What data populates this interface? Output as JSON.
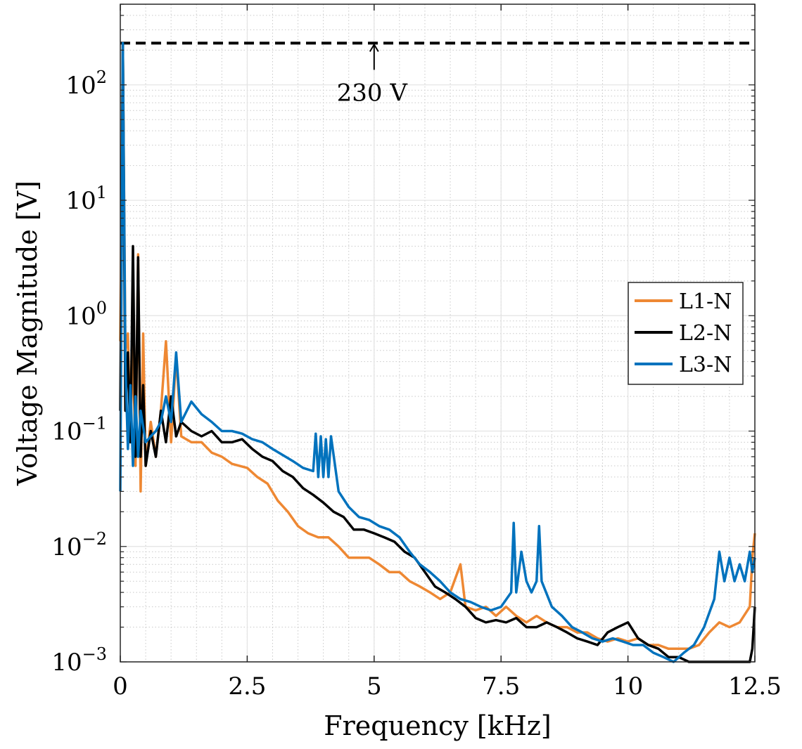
{
  "chart_data": {
    "type": "line",
    "title": "",
    "xlabel": "Frequency [kHz]",
    "ylabel": "Voltage Magnitude [V]",
    "xlim": [
      0,
      12.5
    ],
    "ylim": [
      0.001,
      500
    ],
    "yscale": "log",
    "grid": true,
    "minor_grid": true,
    "legend_position": "right",
    "x_ticks": [
      {
        "value": 0,
        "label": "0"
      },
      {
        "value": 2.5,
        "label": "2.5"
      },
      {
        "value": 5,
        "label": "5"
      },
      {
        "value": 7.5,
        "label": "7.5"
      },
      {
        "value": 10,
        "label": "10"
      },
      {
        "value": 12.5,
        "label": "12.5"
      }
    ],
    "y_ticks": [
      {
        "value": 0.001,
        "base": "10",
        "exp": "−3"
      },
      {
        "value": 0.01,
        "base": "10",
        "exp": "−2"
      },
      {
        "value": 0.1,
        "base": "10",
        "exp": "−1"
      },
      {
        "value": 1,
        "base": "10",
        "exp": "0"
      },
      {
        "value": 10,
        "base": "10",
        "exp": "1"
      },
      {
        "value": 100,
        "base": "10",
        "exp": "2"
      }
    ],
    "reference_line": {
      "value": 230,
      "style": "dashed",
      "color": "#000000"
    },
    "annotation": {
      "text": "230 V",
      "x": 5
    },
    "series": [
      {
        "name": "L1-N",
        "color": "#EE8833",
        "points": [
          [
            0,
            0.6
          ],
          [
            0.05,
            230
          ],
          [
            0.1,
            0.5
          ],
          [
            0.15,
            0.7
          ],
          [
            0.2,
            0.09
          ],
          [
            0.25,
            0.6
          ],
          [
            0.3,
            0.05
          ],
          [
            0.35,
            3.4
          ],
          [
            0.4,
            0.03
          ],
          [
            0.45,
            0.7
          ],
          [
            0.5,
            0.05
          ],
          [
            0.6,
            0.12
          ],
          [
            0.7,
            0.06
          ],
          [
            0.8,
            0.15
          ],
          [
            0.9,
            0.6
          ],
          [
            1.0,
            0.08
          ],
          [
            1.1,
            0.45
          ],
          [
            1.2,
            0.09
          ],
          [
            1.4,
            0.08
          ],
          [
            1.6,
            0.08
          ],
          [
            1.8,
            0.065
          ],
          [
            2.0,
            0.06
          ],
          [
            2.2,
            0.052
          ],
          [
            2.5,
            0.048
          ],
          [
            2.7,
            0.04
          ],
          [
            2.9,
            0.035
          ],
          [
            3.1,
            0.025
          ],
          [
            3.3,
            0.02
          ],
          [
            3.5,
            0.015
          ],
          [
            3.7,
            0.013
          ],
          [
            3.9,
            0.012
          ],
          [
            4.1,
            0.012
          ],
          [
            4.3,
            0.01
          ],
          [
            4.5,
            0.008
          ],
          [
            4.7,
            0.008
          ],
          [
            4.9,
            0.008
          ],
          [
            5.1,
            0.007
          ],
          [
            5.3,
            0.006
          ],
          [
            5.5,
            0.006
          ],
          [
            5.7,
            0.005
          ],
          [
            5.9,
            0.0045
          ],
          [
            6.1,
            0.004
          ],
          [
            6.3,
            0.0035
          ],
          [
            6.5,
            0.004
          ],
          [
            6.7,
            0.007
          ],
          [
            6.8,
            0.003
          ],
          [
            7.0,
            0.0028
          ],
          [
            7.2,
            0.003
          ],
          [
            7.4,
            0.0025
          ],
          [
            7.6,
            0.003
          ],
          [
            7.8,
            0.0025
          ],
          [
            8.0,
            0.0022
          ],
          [
            8.2,
            0.0025
          ],
          [
            8.4,
            0.0022
          ],
          [
            8.6,
            0.002
          ],
          [
            8.8,
            0.002
          ],
          [
            9.0,
            0.0018
          ],
          [
            9.2,
            0.0018
          ],
          [
            9.4,
            0.0016
          ],
          [
            9.6,
            0.0015
          ],
          [
            9.8,
            0.0016
          ],
          [
            10.0,
            0.0015
          ],
          [
            10.2,
            0.0016
          ],
          [
            10.4,
            0.0014
          ],
          [
            10.6,
            0.0014
          ],
          [
            10.8,
            0.0013
          ],
          [
            11.0,
            0.0013
          ],
          [
            11.2,
            0.0013
          ],
          [
            11.4,
            0.0014
          ],
          [
            11.6,
            0.0018
          ],
          [
            11.8,
            0.0022
          ],
          [
            12.0,
            0.002
          ],
          [
            12.2,
            0.0022
          ],
          [
            12.4,
            0.003
          ],
          [
            12.45,
            0.008
          ],
          [
            12.5,
            0.013
          ]
        ]
      },
      {
        "name": "L2-N",
        "color": "#000000",
        "points": [
          [
            0,
            0.15
          ],
          [
            0.05,
            230
          ],
          [
            0.1,
            0.15
          ],
          [
            0.15,
            0.48
          ],
          [
            0.2,
            0.08
          ],
          [
            0.25,
            4.0
          ],
          [
            0.3,
            0.06
          ],
          [
            0.35,
            3.2
          ],
          [
            0.4,
            0.06
          ],
          [
            0.45,
            0.25
          ],
          [
            0.5,
            0.05
          ],
          [
            0.6,
            0.1
          ],
          [
            0.7,
            0.06
          ],
          [
            0.8,
            0.15
          ],
          [
            0.9,
            0.08
          ],
          [
            1.0,
            0.2
          ],
          [
            1.1,
            0.09
          ],
          [
            1.2,
            0.12
          ],
          [
            1.4,
            0.1
          ],
          [
            1.6,
            0.09
          ],
          [
            1.8,
            0.1
          ],
          [
            2.0,
            0.08
          ],
          [
            2.2,
            0.08
          ],
          [
            2.4,
            0.085
          ],
          [
            2.6,
            0.07
          ],
          [
            2.8,
            0.06
          ],
          [
            3.0,
            0.055
          ],
          [
            3.2,
            0.045
          ],
          [
            3.4,
            0.04
          ],
          [
            3.6,
            0.032
          ],
          [
            3.8,
            0.028
          ],
          [
            4.0,
            0.024
          ],
          [
            4.2,
            0.02
          ],
          [
            4.4,
            0.018
          ],
          [
            4.6,
            0.014
          ],
          [
            4.8,
            0.014
          ],
          [
            5.0,
            0.013
          ],
          [
            5.2,
            0.012
          ],
          [
            5.4,
            0.011
          ],
          [
            5.6,
            0.009
          ],
          [
            5.8,
            0.008
          ],
          [
            6.0,
            0.006
          ],
          [
            6.2,
            0.0045
          ],
          [
            6.4,
            0.004
          ],
          [
            6.6,
            0.0035
          ],
          [
            6.8,
            0.003
          ],
          [
            7.0,
            0.0024
          ],
          [
            7.2,
            0.0022
          ],
          [
            7.4,
            0.0023
          ],
          [
            7.6,
            0.0022
          ],
          [
            7.8,
            0.0024
          ],
          [
            8.0,
            0.002
          ],
          [
            8.2,
            0.002
          ],
          [
            8.4,
            0.0022
          ],
          [
            8.6,
            0.002
          ],
          [
            8.8,
            0.0018
          ],
          [
            9.0,
            0.0016
          ],
          [
            9.2,
            0.0015
          ],
          [
            9.4,
            0.0014
          ],
          [
            9.6,
            0.0018
          ],
          [
            9.8,
            0.002
          ],
          [
            10.0,
            0.0022
          ],
          [
            10.2,
            0.0016
          ],
          [
            10.4,
            0.0014
          ],
          [
            10.6,
            0.0013
          ],
          [
            10.8,
            0.0011
          ],
          [
            11.0,
            0.0011
          ],
          [
            11.2,
            0.001
          ],
          [
            11.4,
            0.001
          ],
          [
            11.6,
            0.001
          ],
          [
            11.8,
            0.001
          ],
          [
            12.0,
            0.001
          ],
          [
            12.2,
            0.001
          ],
          [
            12.4,
            0.001
          ],
          [
            12.45,
            0.0013
          ],
          [
            12.5,
            0.003
          ]
        ]
      },
      {
        "name": "L3-N",
        "color": "#0072BD",
        "points": [
          [
            0,
            0.03
          ],
          [
            0.05,
            230
          ],
          [
            0.1,
            0.4
          ],
          [
            0.15,
            0.07
          ],
          [
            0.2,
            0.25
          ],
          [
            0.25,
            0.05
          ],
          [
            0.3,
            0.2
          ],
          [
            0.35,
            0.06
          ],
          [
            0.4,
            0.15
          ],
          [
            0.5,
            0.08
          ],
          [
            0.6,
            0.09
          ],
          [
            0.7,
            0.1
          ],
          [
            0.8,
            0.12
          ],
          [
            0.9,
            0.2
          ],
          [
            1.0,
            0.12
          ],
          [
            1.1,
            0.48
          ],
          [
            1.2,
            0.12
          ],
          [
            1.4,
            0.18
          ],
          [
            1.6,
            0.14
          ],
          [
            1.8,
            0.12
          ],
          [
            2.0,
            0.1
          ],
          [
            2.2,
            0.1
          ],
          [
            2.4,
            0.095
          ],
          [
            2.6,
            0.085
          ],
          [
            2.8,
            0.08
          ],
          [
            3.0,
            0.07
          ],
          [
            3.2,
            0.062
          ],
          [
            3.4,
            0.055
          ],
          [
            3.6,
            0.048
          ],
          [
            3.8,
            0.045
          ],
          [
            3.85,
            0.095
          ],
          [
            3.9,
            0.04
          ],
          [
            3.95,
            0.09
          ],
          [
            4.0,
            0.04
          ],
          [
            4.05,
            0.085
          ],
          [
            4.1,
            0.04
          ],
          [
            4.15,
            0.09
          ],
          [
            4.3,
            0.03
          ],
          [
            4.5,
            0.022
          ],
          [
            4.7,
            0.018
          ],
          [
            4.9,
            0.017
          ],
          [
            5.1,
            0.015
          ],
          [
            5.3,
            0.014
          ],
          [
            5.5,
            0.012
          ],
          [
            5.7,
            0.009
          ],
          [
            5.9,
            0.007
          ],
          [
            6.1,
            0.006
          ],
          [
            6.3,
            0.005
          ],
          [
            6.5,
            0.004
          ],
          [
            6.7,
            0.0035
          ],
          [
            6.9,
            0.0033
          ],
          [
            7.1,
            0.003
          ],
          [
            7.3,
            0.0028
          ],
          [
            7.5,
            0.003
          ],
          [
            7.7,
            0.004
          ],
          [
            7.75,
            0.016
          ],
          [
            7.8,
            0.004
          ],
          [
            7.9,
            0.009
          ],
          [
            8.0,
            0.005
          ],
          [
            8.1,
            0.004
          ],
          [
            8.2,
            0.005
          ],
          [
            8.25,
            0.015
          ],
          [
            8.3,
            0.005
          ],
          [
            8.5,
            0.003
          ],
          [
            8.7,
            0.0025
          ],
          [
            8.9,
            0.002
          ],
          [
            9.1,
            0.0018
          ],
          [
            9.3,
            0.0016
          ],
          [
            9.5,
            0.0015
          ],
          [
            9.7,
            0.0016
          ],
          [
            9.9,
            0.0015
          ],
          [
            10.1,
            0.0014
          ],
          [
            10.3,
            0.0014
          ],
          [
            10.5,
            0.0012
          ],
          [
            10.7,
            0.0011
          ],
          [
            10.9,
            0.001
          ],
          [
            11.1,
            0.0012
          ],
          [
            11.3,
            0.0014
          ],
          [
            11.5,
            0.002
          ],
          [
            11.7,
            0.0035
          ],
          [
            11.8,
            0.009
          ],
          [
            11.9,
            0.005
          ],
          [
            12.0,
            0.008
          ],
          [
            12.1,
            0.005
          ],
          [
            12.2,
            0.007
          ],
          [
            12.3,
            0.005
          ],
          [
            12.4,
            0.009
          ],
          [
            12.45,
            0.006
          ],
          [
            12.5,
            0.008
          ]
        ]
      }
    ]
  }
}
